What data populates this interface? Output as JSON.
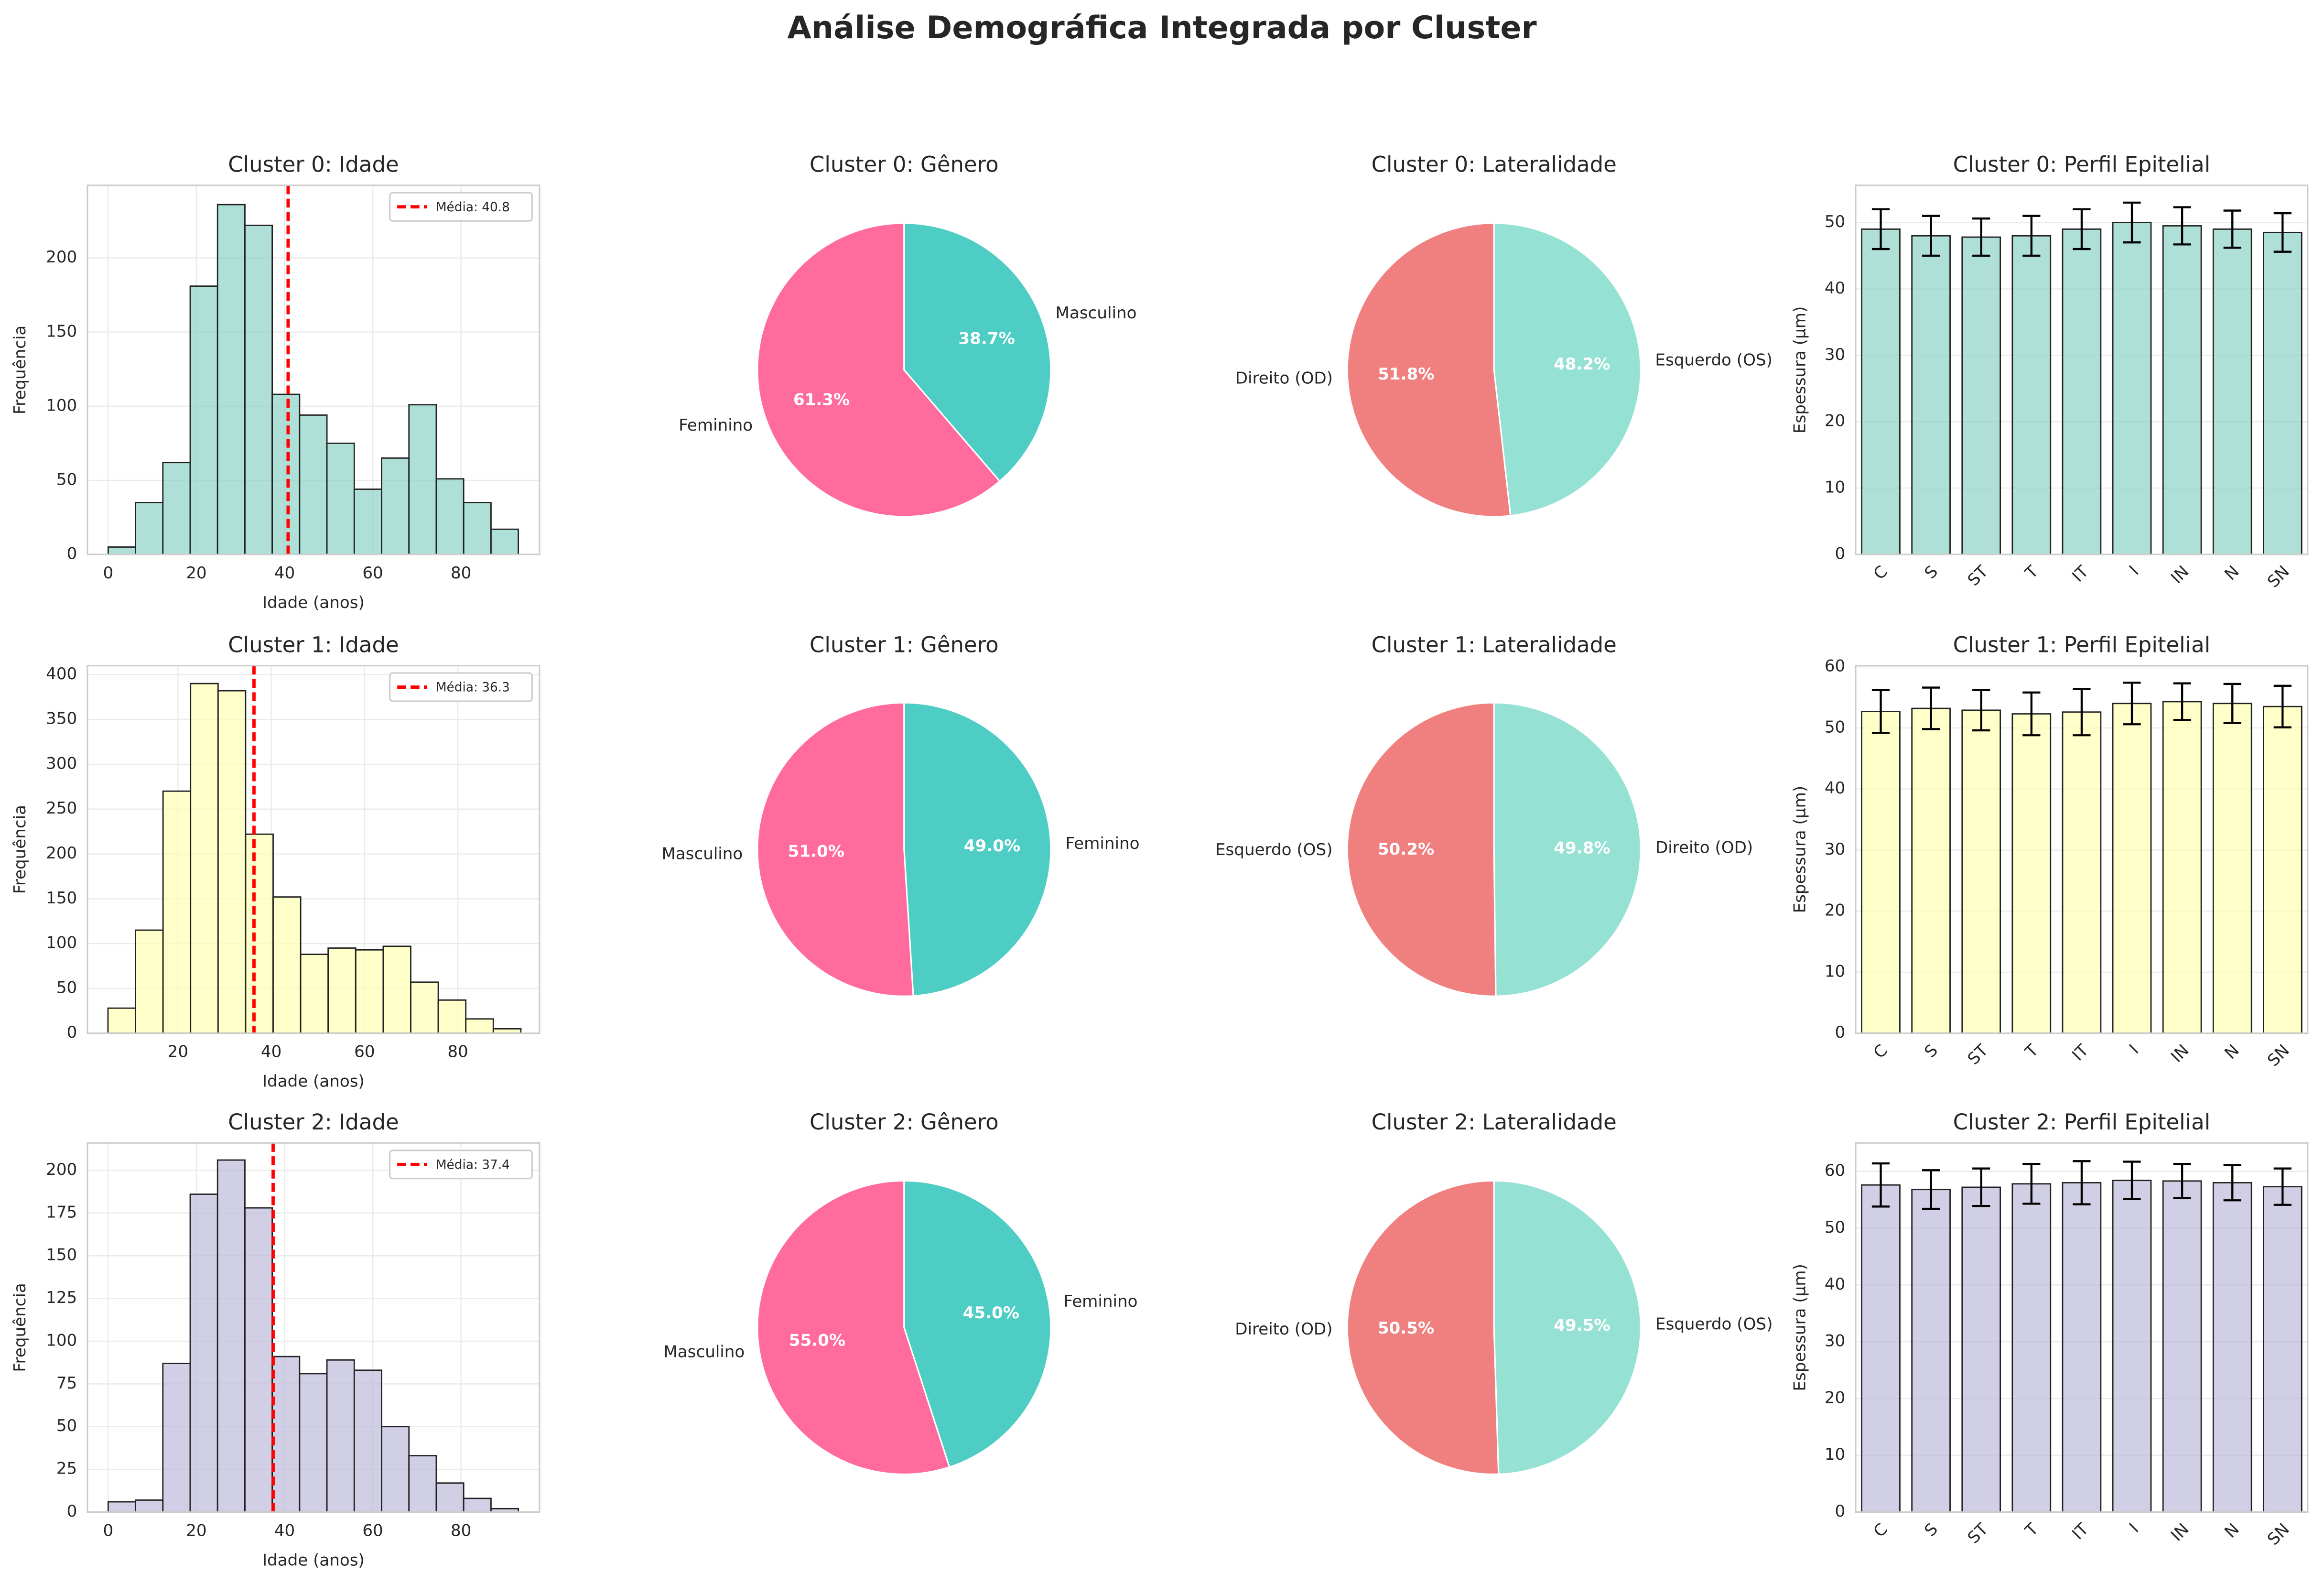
{
  "title": "Análise Demográfica Integrada por Cluster",
  "chart_data": [
    {
      "type": "histogram",
      "title": "Cluster 0: Idade",
      "xlabel": "Idade (anos)",
      "ylabel": "Frequência",
      "color": "#8dd3c7",
      "bins": [
        0,
        6.2,
        12.4,
        18.6,
        24.8,
        31,
        37.2,
        43.4,
        49.6,
        55.8,
        62,
        68.2,
        74.4,
        80.6,
        86.8,
        93
      ],
      "values": [
        5,
        35,
        62,
        181,
        236,
        222,
        108,
        94,
        75,
        44,
        65,
        101,
        51,
        35,
        17
      ],
      "xlim": [
        -4.7,
        97.8
      ],
      "xticks": [
        0,
        20,
        40,
        60,
        80
      ],
      "ylim": [
        0,
        249
      ],
      "yticks": [
        0,
        50,
        100,
        150,
        200
      ],
      "grid": true,
      "mean": 40.8,
      "mean_label": "Média: 40.8",
      "mean_color": "#ff0000"
    },
    {
      "type": "pie",
      "title": "Cluster 0: Gênero",
      "labels": [
        "Feminino",
        "Masculino"
      ],
      "values": [
        61.3,
        38.7
      ],
      "value_labels": [
        "61.3%",
        "38.7%"
      ],
      "colors": [
        "#ff6b9d",
        "#4ecdc4"
      ],
      "start_angle": 90
    },
    {
      "type": "pie",
      "title": "Cluster 0: Lateralidade",
      "labels": [
        "Direito (OD)",
        "Esquerdo (OS)"
      ],
      "values": [
        51.8,
        48.2
      ],
      "value_labels": [
        "51.8%",
        "48.2%"
      ],
      "colors": [
        "#f08080",
        "#95e1d3"
      ],
      "start_angle": 90
    },
    {
      "type": "bar",
      "title": "Cluster 0: Perfil Epitelial",
      "ylabel": "Espessura (μm)",
      "color": "#8dd3c7",
      "categories": [
        "C",
        "S",
        "ST",
        "T",
        "IT",
        "I",
        "IN",
        "N",
        "SN"
      ],
      "values": [
        49,
        48,
        47.8,
        48,
        49,
        50,
        49.5,
        49,
        48.5
      ],
      "errors": [
        3,
        3,
        2.8,
        3,
        3,
        3,
        2.8,
        2.8,
        2.9
      ],
      "ylim": [
        0,
        55.6
      ],
      "yticks": [
        0,
        10,
        20,
        30,
        40,
        50
      ],
      "grid": true
    },
    {
      "type": "histogram",
      "title": "Cluster 1: Idade",
      "xlabel": "Idade (anos)",
      "ylabel": "Frequência",
      "color": "#ffffb3",
      "bins": [
        5,
        10.9,
        16.8,
        22.7,
        28.6,
        34.5,
        40.4,
        46.3,
        52.2,
        58.1,
        64,
        69.9,
        75.8,
        81.7,
        87.6,
        93.5
      ],
      "values": [
        28,
        115,
        270,
        390,
        382,
        222,
        152,
        88,
        95,
        93,
        97,
        57,
        37,
        16,
        5
      ],
      "xlim": [
        0.6,
        97.5
      ],
      "xticks": [
        20,
        40,
        60,
        80
      ],
      "ylim": [
        0,
        410
      ],
      "yticks": [
        0,
        50,
        100,
        150,
        200,
        250,
        300,
        350,
        400
      ],
      "grid": true,
      "mean": 36.3,
      "mean_label": "Média: 36.3",
      "mean_color": "#ff0000"
    },
    {
      "type": "pie",
      "title": "Cluster 1: Gênero",
      "labels": [
        "Masculino",
        "Feminino"
      ],
      "values": [
        51.0,
        49.0
      ],
      "value_labels": [
        "51.0%",
        "49.0%"
      ],
      "colors": [
        "#ff6b9d",
        "#4ecdc4"
      ],
      "start_angle": 90
    },
    {
      "type": "pie",
      "title": "Cluster 1: Lateralidade",
      "labels": [
        "Esquerdo (OS)",
        "Direito (OD)"
      ],
      "values": [
        50.2,
        49.8
      ],
      "value_labels": [
        "50.2%",
        "49.8%"
      ],
      "colors": [
        "#f08080",
        "#95e1d3"
      ],
      "start_angle": 90
    },
    {
      "type": "bar",
      "title": "Cluster 1: Perfil Epitelial",
      "ylabel": "Espessura (μm)",
      "color": "#ffffb3",
      "categories": [
        "C",
        "S",
        "ST",
        "T",
        "IT",
        "I",
        "IN",
        "N",
        "SN"
      ],
      "values": [
        52.7,
        53.2,
        52.9,
        52.3,
        52.6,
        54,
        54.3,
        54,
        53.5
      ],
      "errors": [
        3.5,
        3.4,
        3.3,
        3.5,
        3.8,
        3.4,
        3,
        3.2,
        3.4
      ],
      "ylim": [
        0,
        60.2
      ],
      "yticks": [
        0,
        10,
        20,
        30,
        40,
        50,
        60
      ],
      "grid": true
    },
    {
      "type": "histogram",
      "title": "Cluster 2: Idade",
      "xlabel": "Idade (anos)",
      "ylabel": "Frequência",
      "color": "#bebada",
      "bins": [
        0,
        6.2,
        12.4,
        18.6,
        24.8,
        31,
        37.2,
        43.4,
        49.6,
        55.8,
        62,
        68.2,
        74.4,
        80.6,
        86.8,
        93
      ],
      "values": [
        6,
        7,
        87,
        186,
        206,
        178,
        91,
        81,
        89,
        83,
        50,
        33,
        17,
        8,
        2
      ],
      "xlim": [
        -4.7,
        97.8
      ],
      "xticks": [
        0,
        20,
        40,
        60,
        80
      ],
      "ylim": [
        0,
        216
      ],
      "yticks": [
        0,
        25,
        50,
        75,
        100,
        125,
        150,
        175,
        200
      ],
      "grid": true,
      "mean": 37.4,
      "mean_label": "Média: 37.4",
      "mean_color": "#ff0000"
    },
    {
      "type": "pie",
      "title": "Cluster 2: Gênero",
      "labels": [
        "Masculino",
        "Feminino"
      ],
      "values": [
        55.0,
        45.0
      ],
      "value_labels": [
        "55.0%",
        "45.0%"
      ],
      "colors": [
        "#ff6b9d",
        "#4ecdc4"
      ],
      "start_angle": 90
    },
    {
      "type": "pie",
      "title": "Cluster 2: Lateralidade",
      "labels": [
        "Direito (OD)",
        "Esquerdo (OS)"
      ],
      "values": [
        50.5,
        49.5
      ],
      "value_labels": [
        "50.5%",
        "49.5%"
      ],
      "colors": [
        "#f08080",
        "#95e1d3"
      ],
      "start_angle": 90
    },
    {
      "type": "bar",
      "title": "Cluster 2: Perfil Epitelial",
      "ylabel": "Espessura (μm)",
      "color": "#bebada",
      "categories": [
        "C",
        "S",
        "ST",
        "T",
        "IT",
        "I",
        "IN",
        "N",
        "SN"
      ],
      "values": [
        57.6,
        56.8,
        57.2,
        57.8,
        58,
        58.4,
        58.3,
        58,
        57.3
      ],
      "errors": [
        3.8,
        3.4,
        3.3,
        3.5,
        3.8,
        3.3,
        3,
        3.1,
        3.2
      ],
      "ylim": [
        0,
        65
      ],
      "yticks": [
        0,
        10,
        20,
        30,
        40,
        50,
        60
      ],
      "grid": true
    }
  ]
}
